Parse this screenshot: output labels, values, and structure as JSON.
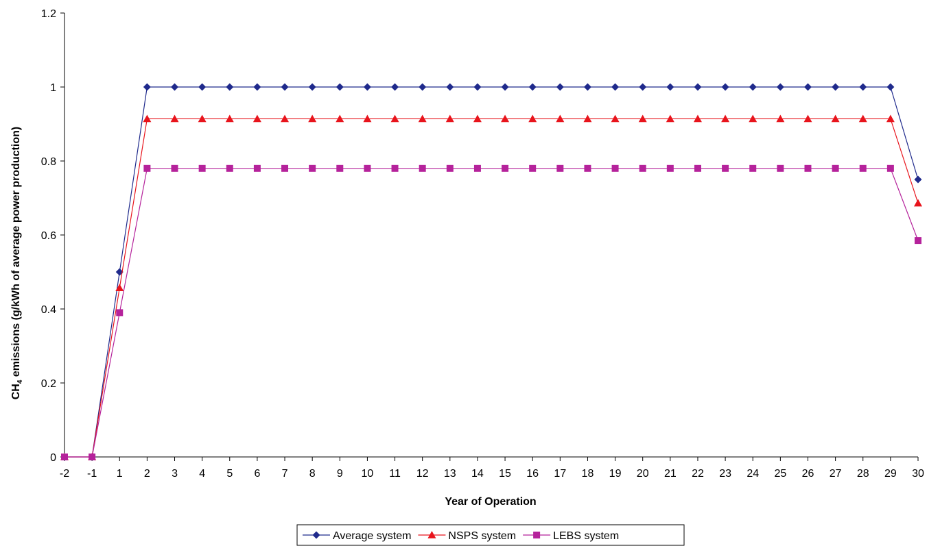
{
  "chart_data": {
    "type": "line",
    "title": "",
    "xlabel": "Year of Operation",
    "ylabel": {
      "prefix": "CH",
      "subscript": "4",
      "suffix": " emissions (g/kWh of average power production)"
    },
    "categories": [
      "-2",
      "-1",
      "1",
      "2",
      "3",
      "4",
      "5",
      "6",
      "7",
      "8",
      "9",
      "10",
      "11",
      "12",
      "13",
      "14",
      "15",
      "16",
      "17",
      "18",
      "19",
      "20",
      "21",
      "22",
      "23",
      "24",
      "25",
      "26",
      "27",
      "28",
      "29",
      "30"
    ],
    "ylim": [
      0,
      1.2
    ],
    "yticks": [
      "0",
      "0.2",
      "0.4",
      "0.6",
      "0.8",
      "1",
      "1.2"
    ],
    "grid": false,
    "legend_position": "bottom",
    "series": [
      {
        "name": "Average system",
        "color": "#1f2a8c",
        "marker": "diamond",
        "values": [
          0,
          0,
          0.5,
          1,
          1,
          1,
          1,
          1,
          1,
          1,
          1,
          1,
          1,
          1,
          1,
          1,
          1,
          1,
          1,
          1,
          1,
          1,
          1,
          1,
          1,
          1,
          1,
          1,
          1,
          1,
          1,
          0.75
        ]
      },
      {
        "name": "NSPS system",
        "color": "#e8141c",
        "marker": "triangle",
        "values": [
          0,
          0,
          0.457,
          0.914,
          0.914,
          0.914,
          0.914,
          0.914,
          0.914,
          0.914,
          0.914,
          0.914,
          0.914,
          0.914,
          0.914,
          0.914,
          0.914,
          0.914,
          0.914,
          0.914,
          0.914,
          0.914,
          0.914,
          0.914,
          0.914,
          0.914,
          0.914,
          0.914,
          0.914,
          0.914,
          0.914,
          0.686
        ]
      },
      {
        "name": "LEBS system",
        "color": "#b5229b",
        "marker": "square",
        "values": [
          0,
          0,
          0.39,
          0.78,
          0.78,
          0.78,
          0.78,
          0.78,
          0.78,
          0.78,
          0.78,
          0.78,
          0.78,
          0.78,
          0.78,
          0.78,
          0.78,
          0.78,
          0.78,
          0.78,
          0.78,
          0.78,
          0.78,
          0.78,
          0.78,
          0.78,
          0.78,
          0.78,
          0.78,
          0.78,
          0.78,
          0.585
        ]
      }
    ]
  }
}
